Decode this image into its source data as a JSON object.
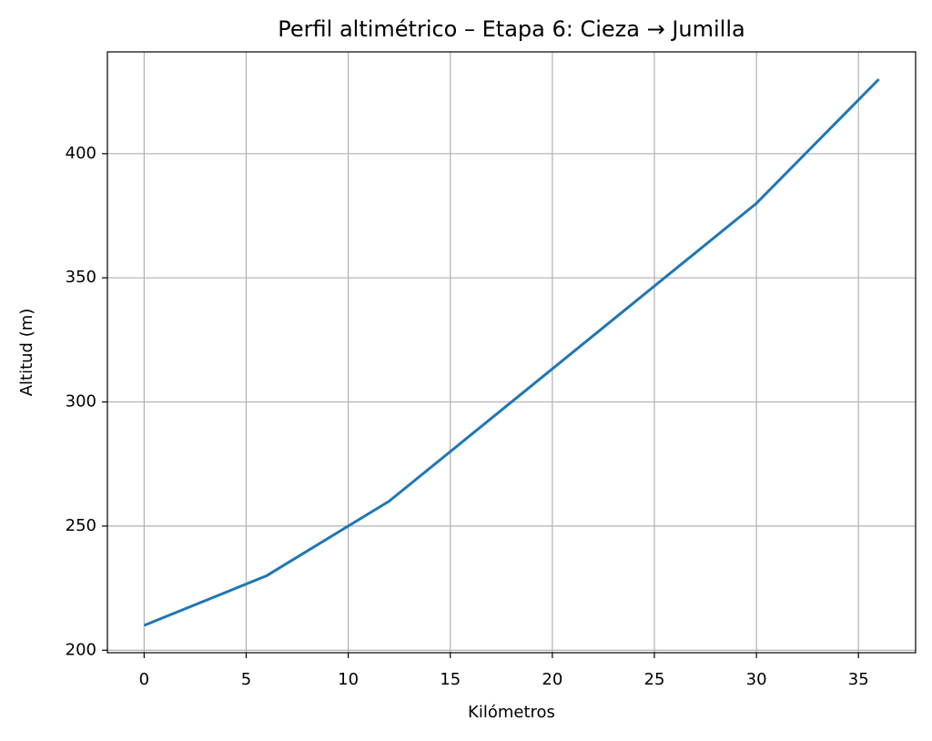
{
  "chart_data": {
    "type": "line",
    "title": "Perfil altimétrico – Etapa 6: Cieza → Jumilla",
    "x_label": "Kilómetros",
    "y_label": "Altitud (m)",
    "x": [
      0,
      6,
      12,
      18,
      24,
      30,
      36
    ],
    "series": [
      {
        "name": "Altitud",
        "color": "#1f77b4",
        "values": [
          210,
          230,
          260,
          300,
          340,
          380,
          430
        ]
      }
    ],
    "xlim": [
      -1.8,
      37.8
    ],
    "ylim": [
      199,
      441
    ],
    "xticks": [
      0,
      5,
      10,
      15,
      20,
      25,
      30,
      35
    ],
    "yticks": [
      200,
      250,
      300,
      350,
      400
    ],
    "grid": true,
    "legend": false
  }
}
